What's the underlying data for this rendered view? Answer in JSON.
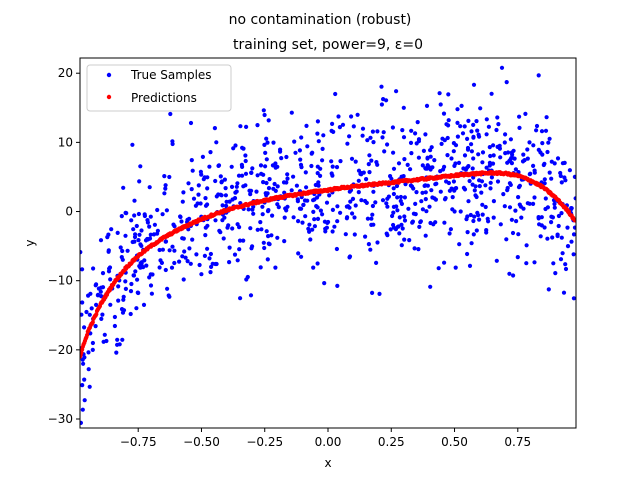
{
  "figure": {
    "suptitle": "no contamination (robust)"
  },
  "chart_data": {
    "type": "scatter",
    "title": "training set, power=9, ε=0",
    "xlabel": "x",
    "ylabel": "y",
    "xlim": [
      -0.98,
      0.98
    ],
    "ylim": [
      -31.3,
      22.2
    ],
    "xticks": [
      -0.75,
      -0.5,
      -0.25,
      0.0,
      0.25,
      0.5,
      0.75
    ],
    "xtick_labels": [
      "−0.75",
      "−0.50",
      "−0.25",
      "0.00",
      "0.25",
      "0.50",
      "0.75"
    ],
    "yticks": [
      -30,
      -20,
      -10,
      0,
      10,
      20
    ],
    "ytick_labels": [
      "−30",
      "−20",
      "−10",
      "0",
      "10",
      "20"
    ],
    "grid": false,
    "legend_position": "upper-left",
    "series": [
      {
        "name": "True Samples",
        "color": "#0000ff",
        "marker": "dot",
        "n_points": 1000,
        "description_of_trend": "noisy samples scattered around the prediction curve with spread of about ±8"
      },
      {
        "name": "Predictions",
        "color": "#ff0000",
        "marker": "dot",
        "x": [
          -0.98,
          -0.95,
          -0.9,
          -0.85,
          -0.8,
          -0.75,
          -0.7,
          -0.65,
          -0.6,
          -0.55,
          -0.5,
          -0.45,
          -0.4,
          -0.35,
          -0.3,
          -0.25,
          -0.2,
          -0.15,
          -0.1,
          -0.05,
          0.0,
          0.05,
          0.1,
          0.15,
          0.2,
          0.25,
          0.3,
          0.35,
          0.4,
          0.45,
          0.5,
          0.55,
          0.6,
          0.65,
          0.7,
          0.75,
          0.8,
          0.85,
          0.9,
          0.93,
          0.95,
          0.97,
          0.98
        ],
        "y": [
          -21.0,
          -17.5,
          -13.5,
          -10.5,
          -8.2,
          -6.4,
          -5.0,
          -3.8,
          -2.8,
          -1.9,
          -1.1,
          -0.4,
          0.2,
          0.7,
          1.2,
          1.6,
          2.0,
          2.3,
          2.6,
          2.9,
          3.1,
          3.4,
          3.6,
          3.8,
          4.0,
          4.2,
          4.4,
          4.6,
          4.8,
          5.0,
          5.2,
          5.4,
          5.5,
          5.6,
          5.5,
          5.2,
          4.5,
          3.5,
          2.0,
          0.8,
          0.0,
          -1.0,
          -1.3
        ]
      }
    ]
  }
}
